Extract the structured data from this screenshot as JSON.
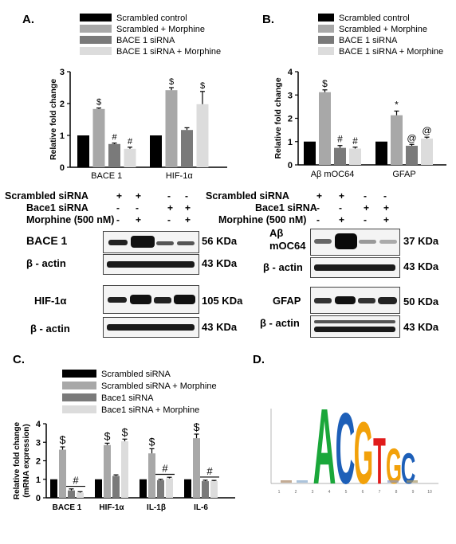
{
  "panels": {
    "A": {
      "label": "A.",
      "legend": [
        "Scrambled control",
        "Scrambled + Morphine",
        "BACE 1 siRNA",
        "BACE 1 siRNA + Morphine"
      ],
      "ylabel": "Relative fold change",
      "western": {
        "rows": [
          "Scrambled siRNA",
          "Bace1 siRNA",
          "Morphine (500 nM)"
        ],
        "signs": [
          [
            "+",
            "+",
            "-",
            "-"
          ],
          [
            "-",
            "-",
            "+",
            "+"
          ],
          [
            "-",
            "+",
            "-",
            "+"
          ]
        ],
        "blots": [
          {
            "left": "BACE 1",
            "right": "56 KDa"
          },
          {
            "left": "β - actin",
            "right": "43 KDa"
          },
          {
            "left": "HIF-1α",
            "right": "105 KDa"
          },
          {
            "left": "β - actin",
            "right": "43 KDa"
          }
        ]
      }
    },
    "B": {
      "label": "B.",
      "legend": [
        "Scrambled control",
        "Scrambled + Morphine",
        "BACE 1 siRNA",
        "BACE 1 siRNA + Morphine"
      ],
      "ylabel": "Relative fold change",
      "western": {
        "rows": [
          "Scrambled siRNA",
          "Bace1 siRNA",
          "Morphine (500 nM)"
        ],
        "signs": [
          [
            "+",
            "+",
            "-",
            "-"
          ],
          [
            "-",
            "-",
            "+",
            "+"
          ],
          [
            "-",
            "+",
            "-",
            "+"
          ]
        ],
        "blots": [
          {
            "left": "Aβ mOC64",
            "right": "37 KDa"
          },
          {
            "left": "β - actin",
            "right": "43 KDa"
          },
          {
            "left": "GFAP",
            "right": "50 KDa"
          },
          {
            "left": "β - actin",
            "right": "43 KDa"
          }
        ]
      }
    },
    "C": {
      "label": "C.",
      "legend": [
        "Scrambled siRNA",
        "Scrambled siRNA + Morphine",
        "Bace1 siRNA",
        "Bace1 siRNA + Morphine"
      ],
      "ylabel": "Relative fold change (mRNA expression)"
    },
    "D": {
      "label": "D.",
      "logo_letters": [
        "A",
        "C",
        "G",
        "T",
        "G",
        "C"
      ],
      "x_ticks": [
        "1",
        "2",
        "3",
        "4",
        "5",
        "6",
        "7",
        "8",
        "9",
        "10"
      ]
    }
  },
  "colors": {
    "series": [
      "#000000",
      "#a8a8a8",
      "#7a7a7a",
      "#dcdcdc"
    ]
  },
  "chart_data": [
    {
      "type": "bar",
      "panel": "A",
      "categories": [
        "BACE 1",
        "HIF-1α"
      ],
      "series": [
        {
          "name": "Scrambled control",
          "values": [
            1.0,
            1.0
          ],
          "errors": [
            0,
            0
          ],
          "annotations": [
            "",
            ""
          ]
        },
        {
          "name": "Scrambled + Morphine",
          "values": [
            1.83,
            2.42
          ],
          "errors": [
            0.03,
            0.08
          ],
          "annotations": [
            "$",
            "$"
          ]
        },
        {
          "name": "BACE 1 siRNA",
          "values": [
            0.73,
            1.17
          ],
          "errors": [
            0.03,
            0.07
          ],
          "annotations": [
            "#",
            ""
          ]
        },
        {
          "name": "BACE 1 siRNA + Morphine",
          "values": [
            0.58,
            1.98
          ],
          "errors": [
            0.05,
            0.4
          ],
          "annotations": [
            "#",
            "$"
          ]
        }
      ],
      "ylabel": "Relative fold change",
      "ylim": [
        0,
        3
      ],
      "yticks": [
        "0",
        "1",
        "2",
        "3"
      ]
    },
    {
      "type": "bar",
      "panel": "B",
      "categories": [
        "Aβ mOC64",
        "GFAP"
      ],
      "series": [
        {
          "name": "Scrambled control",
          "values": [
            1.0,
            1.0
          ],
          "errors": [
            0,
            0
          ],
          "annotations": [
            "",
            ""
          ]
        },
        {
          "name": "Scrambled + Morphine",
          "values": [
            3.12,
            2.13
          ],
          "errors": [
            0.1,
            0.18
          ],
          "annotations": [
            "$",
            "*"
          ]
        },
        {
          "name": "BACE 1 siRNA",
          "values": [
            0.73,
            0.82
          ],
          "errors": [
            0.1,
            0.06
          ],
          "annotations": [
            "#",
            "@"
          ]
        },
        {
          "name": "BACE 1 siRNA + Morphine",
          "values": [
            0.7,
            1.13
          ],
          "errors": [
            0.06,
            0.06
          ],
          "annotations": [
            "#",
            "@"
          ]
        }
      ],
      "ylabel": "Relative fold change",
      "ylim": [
        0,
        4
      ],
      "yticks": [
        "0",
        "1",
        "2",
        "3",
        "4"
      ]
    },
    {
      "type": "bar",
      "panel": "C",
      "categories": [
        "BACE 1",
        "HIF-1α",
        "IL-1β",
        "IL-6"
      ],
      "series": [
        {
          "name": "Scrambled siRNA",
          "values": [
            1.0,
            1.0,
            1.0,
            1.0
          ],
          "errors": [
            0,
            0,
            0,
            0
          ],
          "annotations": [
            "",
            "",
            "",
            ""
          ]
        },
        {
          "name": "Scrambled siRNA + Morphine",
          "values": [
            2.6,
            2.85,
            2.4,
            3.22
          ],
          "errors": [
            0.15,
            0.1,
            0.25,
            0.22
          ],
          "annotations": [
            "$",
            "$",
            "$",
            "$"
          ]
        },
        {
          "name": "Bace1 siRNA",
          "values": [
            0.4,
            1.18,
            0.95,
            0.9
          ],
          "errors": [
            0.08,
            0.06,
            0.05,
            0.05
          ],
          "annotations": [
            "",
            "",
            "",
            ""
          ]
        },
        {
          "name": "Bace1 siRNA + Morphine",
          "values": [
            0.28,
            3.05,
            1.05,
            0.9
          ],
          "errors": [
            0.05,
            0.12,
            0.06,
            0.04
          ],
          "annotations": [
            "",
            "$",
            "",
            ""
          ]
        }
      ],
      "group_annotations": [
        "#",
        "",
        "#",
        "#"
      ],
      "ylabel": "Relative fold change (mRNA expression)",
      "ylim": [
        0,
        4
      ],
      "yticks": [
        "0",
        "1",
        "2",
        "3",
        "4"
      ]
    }
  ]
}
